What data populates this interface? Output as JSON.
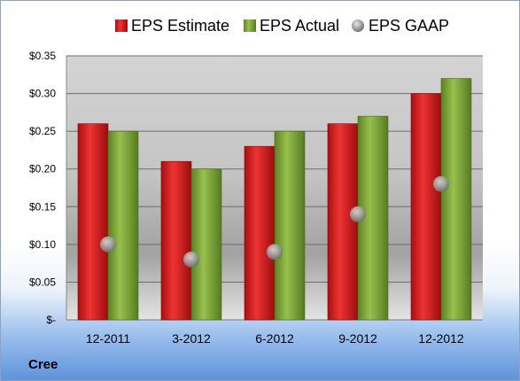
{
  "company": "Cree",
  "chart_data": {
    "type": "bar",
    "categories": [
      "12-2011",
      "3-2012",
      "6-2012",
      "9-2012",
      "12-2012"
    ],
    "series": [
      {
        "name": "EPS Estimate",
        "type": "bar",
        "color": "#d42020",
        "values": [
          0.26,
          0.21,
          0.23,
          0.26,
          0.3
        ]
      },
      {
        "name": "EPS Actual",
        "type": "bar",
        "color": "#7da83a",
        "values": [
          0.25,
          0.2,
          0.25,
          0.27,
          0.32
        ]
      },
      {
        "name": "EPS GAAP",
        "type": "scatter",
        "color": "#9a9a9a",
        "values": [
          0.1,
          0.08,
          0.09,
          0.14,
          0.18
        ]
      }
    ],
    "yticks": [
      "$-",
      "$0.05",
      "$0.10",
      "$0.15",
      "$0.20",
      "$0.25",
      "$0.30",
      "$0.35"
    ],
    "ylim": [
      0,
      0.35
    ],
    "grid": true,
    "legend": "top"
  }
}
